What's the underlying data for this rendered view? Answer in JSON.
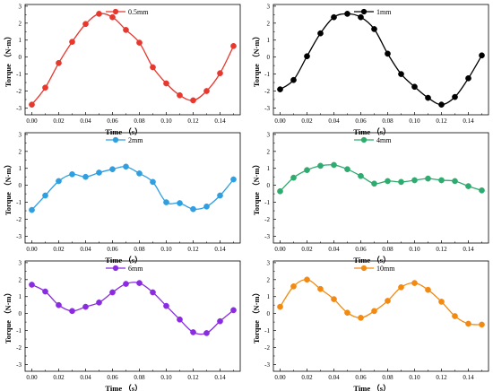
{
  "chart_data": [
    {
      "type": "line",
      "xlabel": "Time （s）",
      "ylabel": "Torque （N·m）",
      "xlim": [
        -0.005,
        0.155
      ],
      "ylim": [
        -3.4,
        3.1
      ],
      "x_ticks": [
        "0.00",
        "0.02",
        "0.04",
        "0.06",
        "0.08",
        "0.10",
        "0.12",
        "0.14"
      ],
      "y_ticks": [
        "-3",
        "-2",
        "-1",
        "0",
        "1",
        "2",
        "3"
      ],
      "legend_position": "top-center",
      "series": [
        {
          "name": "0.5mm",
          "color": "#e8382e",
          "x": [
            0.0,
            0.01,
            0.02,
            0.03,
            0.04,
            0.05,
            0.06,
            0.07,
            0.08,
            0.09,
            0.1,
            0.11,
            0.12,
            0.13,
            0.14,
            0.15
          ],
          "values": [
            -2.8,
            -1.8,
            -0.35,
            0.9,
            1.95,
            2.55,
            2.35,
            1.6,
            0.85,
            -0.6,
            -1.55,
            -2.25,
            -2.55,
            -2.0,
            -0.95,
            0.65
          ]
        }
      ]
    },
    {
      "type": "line",
      "xlabel": "Time （s）",
      "ylabel": "Torque （N·m）",
      "xlim": [
        -0.005,
        0.155
      ],
      "ylim": [
        -3.4,
        3.1
      ],
      "x_ticks": [
        "0.00",
        "0.02",
        "0.04",
        "0.06",
        "0.08",
        "0.10",
        "0.12",
        "0.14"
      ],
      "y_ticks": [
        "-3",
        "-2",
        "-1",
        "0",
        "1",
        "2",
        "3"
      ],
      "legend_position": "top-center",
      "series": [
        {
          "name": "1mm",
          "color": "#000000",
          "x": [
            0.0,
            0.01,
            0.02,
            0.03,
            0.04,
            0.05,
            0.06,
            0.07,
            0.08,
            0.09,
            0.1,
            0.11,
            0.12,
            0.13,
            0.14,
            0.15
          ],
          "values": [
            -1.9,
            -1.35,
            0.05,
            1.4,
            2.35,
            2.55,
            2.35,
            1.65,
            0.2,
            -1.0,
            -1.75,
            -2.4,
            -2.8,
            -2.35,
            -1.25,
            0.1
          ]
        }
      ]
    },
    {
      "type": "line",
      "xlabel": "Time （s）",
      "ylabel": "Torque （N·m）",
      "xlim": [
        -0.005,
        0.155
      ],
      "ylim": [
        -3.4,
        3.1
      ],
      "x_ticks": [
        "0.00",
        "0.02",
        "0.04",
        "0.06",
        "0.08",
        "0.10",
        "0.12",
        "0.14"
      ],
      "y_ticks": [
        "-3",
        "-2",
        "-1",
        "0",
        "1",
        "2",
        "3"
      ],
      "legend_position": "top-center",
      "series": [
        {
          "name": "2mm",
          "color": "#2f9fe0",
          "x": [
            0.0,
            0.01,
            0.02,
            0.03,
            0.04,
            0.05,
            0.06,
            0.07,
            0.08,
            0.09,
            0.1,
            0.11,
            0.12,
            0.13,
            0.14,
            0.15
          ],
          "values": [
            -1.45,
            -0.6,
            0.25,
            0.65,
            0.5,
            0.75,
            0.95,
            1.1,
            0.7,
            0.2,
            -1.0,
            -1.05,
            -1.4,
            -1.25,
            -0.6,
            0.35
          ]
        }
      ]
    },
    {
      "type": "line",
      "xlabel": "Time （s）",
      "ylabel": "Torque （N·m）",
      "xlim": [
        -0.005,
        0.155
      ],
      "ylim": [
        -3.4,
        3.1
      ],
      "x_ticks": [
        "0.00",
        "0.02",
        "0.04",
        "0.06",
        "0.08",
        "0.10",
        "0.12",
        "0.14"
      ],
      "y_ticks": [
        "-3",
        "-2",
        "-1",
        "0",
        "1",
        "2",
        "3"
      ],
      "legend_position": "top-center",
      "series": [
        {
          "name": "4mm",
          "color": "#2eab6e",
          "x": [
            0.0,
            0.01,
            0.02,
            0.03,
            0.04,
            0.05,
            0.06,
            0.07,
            0.08,
            0.09,
            0.1,
            0.11,
            0.12,
            0.13,
            0.14,
            0.15
          ],
          "values": [
            -0.35,
            0.45,
            0.9,
            1.15,
            1.2,
            0.95,
            0.55,
            0.1,
            0.25,
            0.2,
            0.3,
            0.4,
            0.3,
            0.25,
            -0.05,
            -0.3
          ]
        }
      ]
    },
    {
      "type": "line",
      "xlabel": "Time （s）",
      "ylabel": "Torque （N·m）",
      "xlim": [
        -0.005,
        0.155
      ],
      "ylim": [
        -3.4,
        3.1
      ],
      "x_ticks": [
        "0.00",
        "0.02",
        "0.04",
        "0.06",
        "0.08",
        "0.10",
        "0.12",
        "0.14"
      ],
      "y_ticks": [
        "-3",
        "-2",
        "-1",
        "0",
        "1",
        "2",
        "3"
      ],
      "legend_position": "top-center",
      "series": [
        {
          "name": "6mm",
          "color": "#8a2be2",
          "x": [
            0.0,
            0.01,
            0.02,
            0.03,
            0.04,
            0.05,
            0.06,
            0.07,
            0.08,
            0.09,
            0.1,
            0.11,
            0.12,
            0.13,
            0.14,
            0.15
          ],
          "values": [
            1.7,
            1.3,
            0.5,
            0.15,
            0.4,
            0.65,
            1.25,
            1.75,
            1.8,
            1.25,
            0.45,
            -0.35,
            -1.1,
            -1.15,
            -0.45,
            0.2
          ]
        }
      ]
    },
    {
      "type": "line",
      "xlabel": "Time （s）",
      "ylabel": "Torque （N·m）",
      "xlim": [
        -0.005,
        0.155
      ],
      "ylim": [
        -3.4,
        3.1
      ],
      "x_ticks": [
        "0.00",
        "0.02",
        "0.04",
        "0.06",
        "0.08",
        "0.10",
        "0.12",
        "0.14"
      ],
      "y_ticks": [
        "-3",
        "-2",
        "-1",
        "0",
        "1",
        "2",
        "3"
      ],
      "legend_position": "top-center",
      "series": [
        {
          "name": "10mm",
          "color": "#f28a12",
          "x": [
            0.0,
            0.01,
            0.02,
            0.03,
            0.04,
            0.05,
            0.06,
            0.07,
            0.08,
            0.09,
            0.1,
            0.11,
            0.12,
            0.13,
            0.14,
            0.15
          ],
          "values": [
            0.4,
            1.6,
            2.0,
            1.45,
            0.85,
            0.05,
            -0.25,
            0.15,
            0.75,
            1.55,
            1.8,
            1.4,
            0.7,
            -0.15,
            -0.6,
            -0.65
          ]
        }
      ]
    }
  ]
}
